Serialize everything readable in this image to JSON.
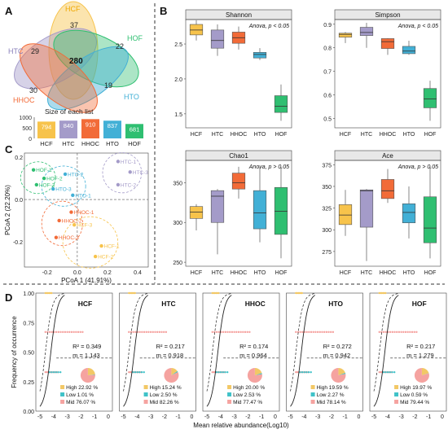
{
  "panel_labels": {
    "a": "A",
    "b": "B",
    "c": "C",
    "d": "D"
  },
  "colors": {
    "HCF": "#f7c34b",
    "HTC": "#a49bc9",
    "HHOC": "#f26b38",
    "HTO": "#42b0d6",
    "HOF": "#2fbf71",
    "high": "#f2c866",
    "low": "#3fc2c8",
    "mid": "#f5a3a0"
  },
  "venn": {
    "sets": [
      "HCF",
      "HTC",
      "HOF",
      "HTO",
      "HHOC"
    ],
    "unique": {
      "HCF": "37",
      "HTC": "29",
      "HOF": "22",
      "HTO": "19",
      "HHOC": "30"
    },
    "core": "280",
    "size_title": "Size of each list",
    "y_ticks": [
      "1000",
      "500",
      "0"
    ],
    "sizes": [
      794,
      840,
      910,
      837,
      681
    ]
  },
  "alpha": {
    "groups": [
      "HCF",
      "HTC",
      "HHOC",
      "HTO",
      "HOF"
    ],
    "panels": [
      {
        "title": "Shannon",
        "note": "Anova, p < 0.05",
        "ylim": [
          1.3,
          2.85
        ],
        "ticks": [
          1.5,
          2.0,
          2.5
        ],
        "tick_labels": [
          "1.5",
          "2.0",
          "2.5"
        ],
        "boxes": [
          [
            2.55,
            2.63,
            2.7,
            2.78,
            2.84
          ],
          [
            2.33,
            2.44,
            2.55,
            2.7,
            2.78
          ],
          [
            2.42,
            2.51,
            2.59,
            2.67,
            2.75
          ],
          [
            2.27,
            2.3,
            2.35,
            2.38,
            2.44
          ],
          [
            1.4,
            1.52,
            1.61,
            1.76,
            1.92
          ]
        ]
      },
      {
        "title": "Simpson",
        "note": "Anova, p < 0.05",
        "ylim": [
          0.46,
          0.92
        ],
        "ticks": [
          0.5,
          0.6,
          0.7,
          0.8,
          0.9
        ],
        "tick_labels": [
          "0.5",
          "0.6",
          "0.7",
          "0.8",
          "0.9"
        ],
        "boxes": [
          [
            0.82,
            0.845,
            0.857,
            0.862,
            0.867
          ],
          [
            0.8,
            0.852,
            0.865,
            0.887,
            0.906
          ],
          [
            0.77,
            0.797,
            0.826,
            0.839,
            0.841
          ],
          [
            0.77,
            0.775,
            0.786,
            0.806,
            0.83
          ],
          [
            0.49,
            0.545,
            0.583,
            0.627,
            0.66
          ]
        ]
      },
      {
        "title": "Chao1",
        "note": "Anova, p > 0.05",
        "ylim": [
          245,
          378
        ],
        "ticks": [
          250,
          300,
          350
        ],
        "tick_labels": [
          "250",
          "300",
          "350"
        ],
        "boxes": [
          [
            290,
            305,
            313,
            320,
            323
          ],
          [
            260,
            300,
            333,
            340,
            342
          ],
          [
            330,
            342,
            350,
            362,
            370
          ],
          [
            275,
            292,
            312,
            340,
            370
          ],
          [
            255,
            285,
            314,
            344,
            370
          ]
        ]
      },
      {
        "title": "Ace",
        "note": "Anova, p > 0.05",
        "ylim": [
          258,
          380
        ],
        "ticks": [
          275,
          300,
          325,
          350,
          375
        ],
        "tick_labels": [
          "275",
          "300",
          "325",
          "350",
          "375"
        ],
        "boxes": [
          [
            293,
            306,
            317,
            329,
            346
          ],
          [
            264,
            303,
            345,
            346,
            347
          ],
          [
            331,
            336,
            345,
            358,
            370
          ],
          [
            290,
            308,
            320,
            330,
            350
          ],
          [
            267,
            285,
            302,
            338,
            374
          ]
        ]
      }
    ]
  },
  "pcoa": {
    "xlabel": "PCoA 1 (41.91%)",
    "ylabel": "PCoA 2 (22.20%)",
    "x_ticks": [
      "-0.2",
      "0.0",
      "0.2",
      "0.4"
    ],
    "y_ticks": [
      "0.2",
      "0.0",
      "-0.2"
    ],
    "points": [
      {
        "label": "HOF-1",
        "g": "HOF",
        "x": -0.29,
        "y": 0.14
      },
      {
        "label": "HOF-2",
        "g": "HOF",
        "x": -0.22,
        "y": 0.1
      },
      {
        "label": "HOF-3",
        "g": "HOF",
        "x": -0.27,
        "y": 0.07
      },
      {
        "label": "HTO-2",
        "g": "HTO",
        "x": -0.08,
        "y": 0.12
      },
      {
        "label": "HTO-3",
        "g": "HTO",
        "x": -0.16,
        "y": 0.05
      },
      {
        "label": "HTO-1",
        "g": "HTO",
        "x": -0.03,
        "y": 0.02
      },
      {
        "label": "HTC-1",
        "g": "HTC",
        "x": 0.27,
        "y": 0.18
      },
      {
        "label": "HTC-3",
        "g": "HTC",
        "x": 0.35,
        "y": 0.13
      },
      {
        "label": "HTC-2",
        "g": "HTC",
        "x": 0.27,
        "y": 0.07
      },
      {
        "label": "HHOC-2",
        "g": "HHOC",
        "x": -0.12,
        "y": -0.1
      },
      {
        "label": "HHOC-1",
        "g": "HHOC",
        "x": -0.04,
        "y": -0.06
      },
      {
        "label": "HHOC-3",
        "g": "HHOC",
        "x": -0.14,
        "y": -0.18
      },
      {
        "label": "HCF-3",
        "g": "HCF",
        "x": -0.02,
        "y": -0.12
      },
      {
        "label": "HCF-1",
        "g": "HCF",
        "x": 0.16,
        "y": -0.22
      },
      {
        "label": "HCF-2",
        "g": "HCF",
        "x": 0.12,
        "y": -0.27
      }
    ]
  },
  "neutral": {
    "ylabel": "Frequency of occurrence",
    "xlabel": "Mean relative abundance(Log10)",
    "x_ticks": [
      "-5",
      "-4",
      "-3",
      "-2",
      "-1",
      "0"
    ],
    "y_ticks": [
      "1.00",
      "0.75",
      "0.50",
      "0.25",
      "0.00"
    ],
    "panels": [
      {
        "name": "HCF",
        "r2": "R² = 0.349",
        "m": "m = 1.143",
        "high": "High 22.92 %",
        "low": "Low 1.01 %",
        "mid": "Mid 76.07 %",
        "pie": [
          22.92,
          1.01,
          76.07
        ]
      },
      {
        "name": "HTC",
        "r2": "R² = 0.217",
        "m": "m = 0.918",
        "high": "High 15.24 %",
        "low": "Low 2.50 %",
        "mid": "Mid 82.26 %",
        "pie": [
          15.24,
          2.5,
          82.26
        ]
      },
      {
        "name": "HHOC",
        "r2": "R² = 0.174",
        "m": "m = 0.964",
        "high": "High 20.00 %",
        "low": "Low 2.53 %",
        "mid": "Mid 77.47 %",
        "pie": [
          20.0,
          2.53,
          77.47
        ]
      },
      {
        "name": "HTO",
        "r2": "R² = 0.272",
        "m": "m = 0.942",
        "high": "High 19.59 %",
        "low": "Low 2.27 %",
        "mid": "Mid 78.14 %",
        "pie": [
          19.59,
          2.27,
          78.14
        ]
      },
      {
        "name": "HOF",
        "r2": "R² = 0.217",
        "m": "m = 1.279",
        "high": "High 19.97 %",
        "low": "Low 0.59 %",
        "mid": "Mid 79.44 %",
        "pie": [
          19.97,
          0.59,
          79.44
        ]
      }
    ]
  }
}
